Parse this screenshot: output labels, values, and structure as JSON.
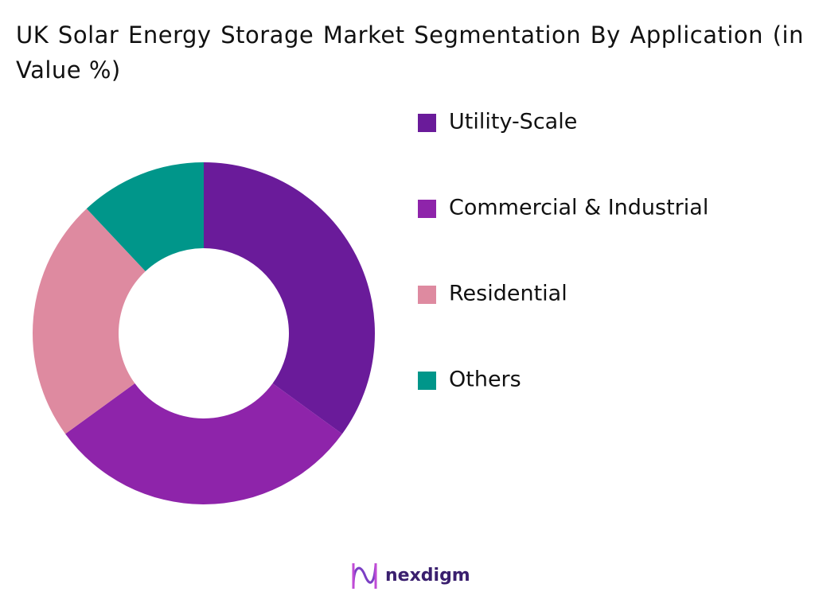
{
  "chart_data": {
    "type": "donut",
    "title": "UK Solar Energy Storage Market Segmentation By Application (in Value %)",
    "categories": [
      "Utility-Scale",
      "Commercial & Industrial",
      "Residential",
      "Others"
    ],
    "values": [
      35,
      30,
      23,
      12
    ],
    "colors": [
      "#6a1b9a",
      "#8e24aa",
      "#de8aa0",
      "#00968a"
    ],
    "legend": "right"
  },
  "logo": "nexdigm"
}
